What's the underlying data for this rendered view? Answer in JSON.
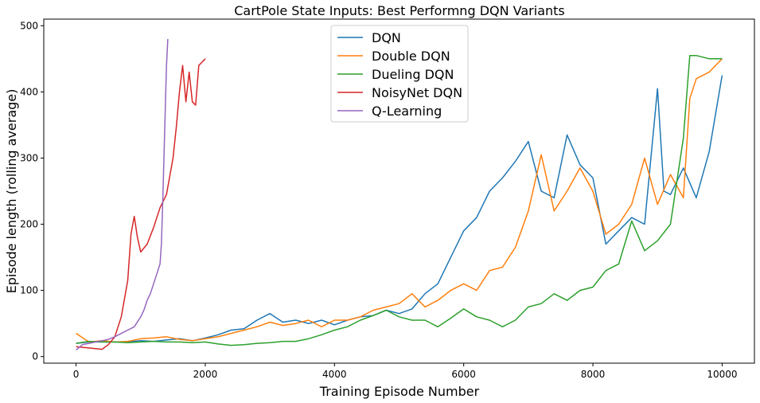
{
  "chart_data": {
    "type": "line",
    "title": "CartPole State Inputs: Best Performng DQN Variants",
    "xlabel": "Training Episode Number",
    "ylabel": "Episode length (rolling average)",
    "xlim": [
      -500,
      10500
    ],
    "ylim": [
      -10,
      510
    ],
    "xticks": [
      0,
      2000,
      4000,
      6000,
      8000,
      10000
    ],
    "yticks": [
      0,
      100,
      200,
      300,
      400,
      500
    ],
    "grid": false,
    "legend_position": "top-center",
    "series": [
      {
        "name": "DQN",
        "color": "#1f77b4",
        "x": [
          0,
          200,
          400,
          600,
          800,
          1000,
          1200,
          1400,
          1600,
          1800,
          2000,
          2200,
          2400,
          2600,
          2800,
          3000,
          3200,
          3400,
          3600,
          3800,
          4000,
          4200,
          4400,
          4600,
          4800,
          5000,
          5200,
          5400,
          5600,
          5800,
          6000,
          6200,
          6400,
          6600,
          6800,
          7000,
          7200,
          7400,
          7600,
          7800,
          8000,
          8200,
          8400,
          8600,
          8800,
          9000,
          9100,
          9200,
          9400,
          9600,
          9800,
          10000
        ],
        "y": [
          20,
          22,
          22,
          22,
          22,
          24,
          23,
          25,
          27,
          24,
          28,
          33,
          40,
          42,
          55,
          65,
          52,
          55,
          50,
          55,
          48,
          55,
          60,
          62,
          70,
          65,
          72,
          95,
          110,
          150,
          190,
          210,
          250,
          270,
          295,
          325,
          250,
          240,
          335,
          290,
          270,
          170,
          190,
          210,
          200,
          405,
          250,
          245,
          285,
          240,
          310,
          425
        ]
      },
      {
        "name": "Double DQN",
        "color": "#ff7f0e",
        "x": [
          0,
          200,
          400,
          600,
          800,
          1000,
          1200,
          1400,
          1600,
          1800,
          2000,
          2200,
          2400,
          2600,
          2800,
          3000,
          3200,
          3400,
          3600,
          3800,
          4000,
          4200,
          4400,
          4600,
          4800,
          5000,
          5200,
          5400,
          5600,
          5800,
          6000,
          6200,
          6400,
          6600,
          6800,
          7000,
          7200,
          7400,
          7600,
          7800,
          8000,
          8200,
          8400,
          8600,
          8800,
          9000,
          9200,
          9400,
          9500,
          9600,
          9800,
          10000
        ],
        "y": [
          35,
          22,
          24,
          22,
          23,
          27,
          28,
          30,
          26,
          24,
          27,
          30,
          35,
          40,
          45,
          52,
          47,
          50,
          55,
          45,
          55,
          55,
          60,
          70,
          75,
          80,
          95,
          75,
          85,
          100,
          110,
          100,
          130,
          135,
          165,
          220,
          305,
          220,
          250,
          285,
          250,
          185,
          200,
          230,
          300,
          230,
          275,
          240,
          390,
          420,
          430,
          450
        ]
      },
      {
        "name": "Dueling DQN",
        "color": "#2ca02c",
        "x": [
          0,
          200,
          400,
          600,
          800,
          1000,
          1200,
          1400,
          1600,
          1800,
          2000,
          2200,
          2400,
          2600,
          2800,
          3000,
          3200,
          3400,
          3600,
          3800,
          4000,
          4200,
          4400,
          4600,
          4800,
          5000,
          5200,
          5400,
          5600,
          5800,
          6000,
          6200,
          6400,
          6600,
          6800,
          7000,
          7200,
          7400,
          7600,
          7800,
          8000,
          8200,
          8400,
          8600,
          8800,
          9000,
          9200,
          9400,
          9500,
          9600,
          9800,
          10000
        ],
        "y": [
          20,
          23,
          22,
          22,
          21,
          22,
          23,
          22,
          22,
          21,
          22,
          19,
          17,
          18,
          20,
          21,
          23,
          23,
          27,
          33,
          40,
          45,
          55,
          62,
          70,
          60,
          55,
          55,
          45,
          58,
          72,
          60,
          55,
          45,
          55,
          75,
          80,
          95,
          85,
          100,
          105,
          130,
          140,
          205,
          160,
          175,
          200,
          330,
          455,
          455,
          450,
          450
        ]
      },
      {
        "name": "NoisyNet DQN",
        "color": "#d62728",
        "x": [
          0,
          100,
          200,
          300,
          400,
          500,
          600,
          700,
          800,
          850,
          900,
          950,
          1000,
          1100,
          1200,
          1300,
          1400,
          1500,
          1550,
          1600,
          1650,
          1700,
          1750,
          1800,
          1850,
          1900,
          1950,
          2000
        ],
        "y": [
          15,
          14,
          13,
          12,
          11,
          18,
          30,
          60,
          115,
          185,
          212,
          180,
          158,
          170,
          195,
          225,
          245,
          300,
          345,
          400,
          440,
          385,
          430,
          385,
          380,
          440,
          445,
          450
        ]
      },
      {
        "name": "Q-Learning",
        "color": "#9467bd",
        "x": [
          0,
          100,
          200,
          300,
          400,
          500,
          600,
          700,
          800,
          900,
          1000,
          1050,
          1100,
          1150,
          1200,
          1250,
          1300,
          1320,
          1340,
          1360,
          1380,
          1400,
          1420
        ],
        "y": [
          10,
          18,
          20,
          22,
          24,
          26,
          30,
          35,
          40,
          45,
          60,
          70,
          85,
          95,
          110,
          125,
          140,
          170,
          230,
          300,
          370,
          440,
          480
        ]
      }
    ]
  }
}
